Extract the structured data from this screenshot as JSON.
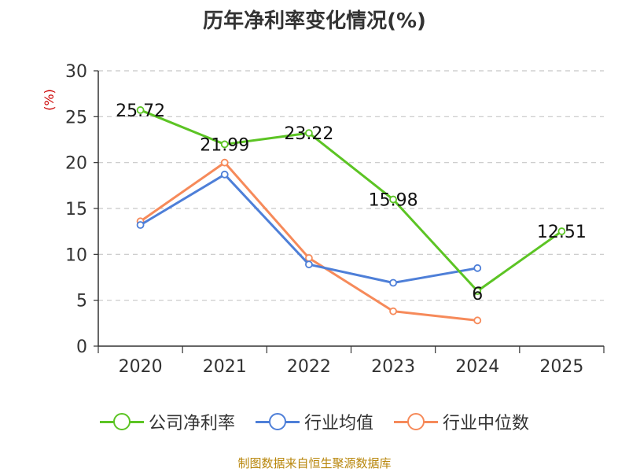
{
  "chart_data": {
    "type": "line",
    "title": "历年净利率变化情况(%)",
    "ylabel": "(%)",
    "xlabel": "",
    "categories": [
      "2020",
      "2021",
      "2022",
      "2023",
      "2024",
      "2025"
    ],
    "ylim": [
      0,
      30
    ],
    "yticks": [
      0,
      5,
      10,
      15,
      20,
      25,
      30
    ],
    "grid": true,
    "legend_position": "bottom",
    "series": [
      {
        "name": "公司净利率",
        "color": "#5cc424",
        "values": [
          25.72,
          21.99,
          23.22,
          15.98,
          6,
          12.51
        ],
        "labels": [
          "25.72",
          "21.99",
          "23.22",
          "15.98",
          "6",
          "12.51"
        ]
      },
      {
        "name": "行业均值",
        "color": "#4e7fd8",
        "values": [
          13.2,
          18.7,
          8.9,
          6.9,
          8.5,
          null
        ]
      },
      {
        "name": "行业中位数",
        "color": "#f68a5a",
        "values": [
          13.6,
          20.0,
          9.6,
          3.8,
          2.8,
          null
        ]
      }
    ]
  },
  "source_text": "制图数据来自恒生聚源数据库"
}
